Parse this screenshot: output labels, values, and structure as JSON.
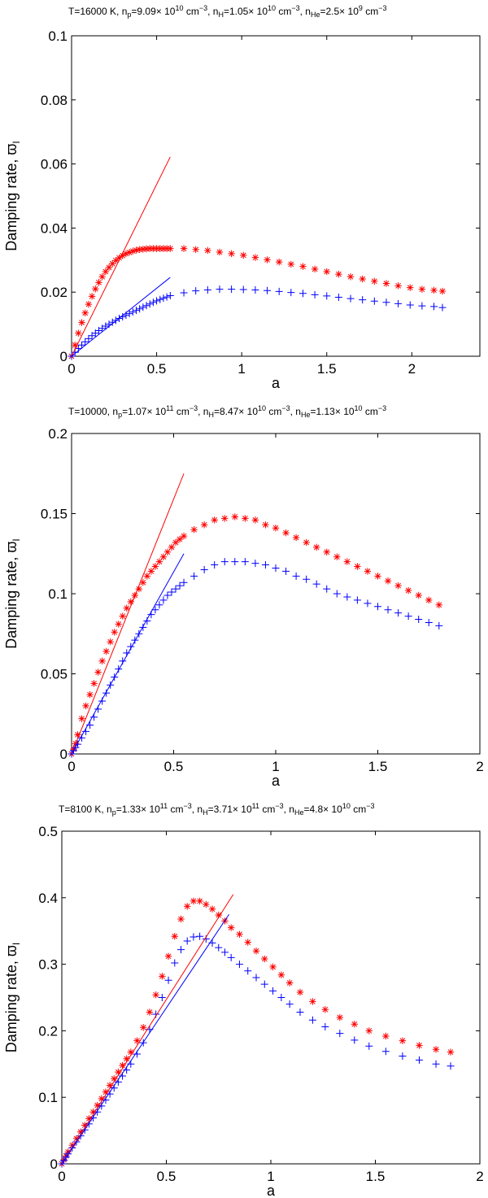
{
  "chart_data": [
    {
      "type": "scatter",
      "title_parts": [
        {
          "t": "T=16000 K, n"
        },
        {
          "t": "p",
          "sub": true
        },
        {
          "t": "=9.09× 10"
        },
        {
          "t": "10",
          "sup": true
        },
        {
          "t": " cm"
        },
        {
          "t": "−3",
          "sup": true
        },
        {
          "t": ", n"
        },
        {
          "t": "H",
          "sub": true
        },
        {
          "t": "=1.05× 10"
        },
        {
          "t": "10",
          "sup": true
        },
        {
          "t": " cm"
        },
        {
          "t": "−3",
          "sup": true
        },
        {
          "t": ", n"
        },
        {
          "t": "He",
          "sub": true
        },
        {
          "t": "=2.5× 10"
        },
        {
          "t": "9",
          "sup": true
        },
        {
          "t": " cm"
        },
        {
          "t": "−3",
          "sup": true
        }
      ],
      "xlabel": "a",
      "ylabel": "Damping rate, ϖ",
      "ylabel_sub": "I",
      "xlim": [
        0,
        2.4
      ],
      "ylim": [
        0,
        0.1
      ],
      "xticks": [
        0,
        0.5,
        1,
        1.5,
        2
      ],
      "xtick_labels": [
        "0",
        "0.5",
        "1",
        "1.5",
        "2"
      ],
      "yticks": [
        0,
        0.02,
        0.04,
        0.06,
        0.08,
        0.1
      ],
      "ytick_labels": [
        "0",
        "0.02",
        "0.04",
        "0.06",
        "0.08",
        "0.1"
      ],
      "series": [
        {
          "name": "red-star-series",
          "marker": "star",
          "color": "#ff0000",
          "x": [
            0.0,
            0.02,
            0.04,
            0.06,
            0.08,
            0.1,
            0.12,
            0.14,
            0.16,
            0.18,
            0.2,
            0.22,
            0.24,
            0.26,
            0.28,
            0.3,
            0.32,
            0.34,
            0.36,
            0.38,
            0.4,
            0.42,
            0.44,
            0.46,
            0.48,
            0.5,
            0.52,
            0.54,
            0.56,
            0.58,
            0.66,
            0.73,
            0.8,
            0.87,
            0.94,
            1.01,
            1.08,
            1.15,
            1.22,
            1.29,
            1.36,
            1.43,
            1.5,
            1.57,
            1.64,
            1.71,
            1.78,
            1.85,
            1.92,
            1.99,
            2.06,
            2.13,
            2.18
          ],
          "y": [
            0.0,
            0.0035,
            0.0072,
            0.0105,
            0.0135,
            0.0162,
            0.0187,
            0.021,
            0.023,
            0.0248,
            0.0264,
            0.0277,
            0.0289,
            0.0299,
            0.0307,
            0.0314,
            0.032,
            0.0324,
            0.0328,
            0.0331,
            0.0333,
            0.0334,
            0.0335,
            0.0336,
            0.0336,
            0.0336,
            0.0336,
            0.0336,
            0.0336,
            0.0336,
            0.0336,
            0.0333,
            0.033,
            0.0325,
            0.032,
            0.0315,
            0.0308,
            0.0301,
            0.0294,
            0.0287,
            0.028,
            0.0272,
            0.0264,
            0.0256,
            0.0248,
            0.0241,
            0.0234,
            0.0227,
            0.022,
            0.0214,
            0.0209,
            0.0206,
            0.0203
          ]
        },
        {
          "name": "blue-plus-series",
          "marker": "plus",
          "color": "#0000ff",
          "x": [
            0.0,
            0.02,
            0.04,
            0.06,
            0.08,
            0.1,
            0.12,
            0.14,
            0.16,
            0.18,
            0.2,
            0.22,
            0.24,
            0.26,
            0.28,
            0.3,
            0.32,
            0.34,
            0.36,
            0.38,
            0.4,
            0.42,
            0.44,
            0.46,
            0.48,
            0.5,
            0.52,
            0.54,
            0.56,
            0.58,
            0.66,
            0.73,
            0.8,
            0.87,
            0.94,
            1.01,
            1.08,
            1.15,
            1.22,
            1.29,
            1.36,
            1.43,
            1.5,
            1.57,
            1.64,
            1.71,
            1.78,
            1.85,
            1.92,
            1.99,
            2.06,
            2.13,
            2.18
          ],
          "y": [
            0.0,
            0.0012,
            0.0024,
            0.0035,
            0.0045,
            0.0055,
            0.0064,
            0.0072,
            0.008,
            0.0087,
            0.0094,
            0.01,
            0.0106,
            0.0112,
            0.0118,
            0.0123,
            0.0128,
            0.0133,
            0.0138,
            0.0143,
            0.0148,
            0.0153,
            0.0158,
            0.0163,
            0.0168,
            0.0173,
            0.0177,
            0.0181,
            0.0185,
            0.0189,
            0.0198,
            0.0204,
            0.0207,
            0.0209,
            0.0209,
            0.0208,
            0.0207,
            0.0205,
            0.0202,
            0.0199,
            0.0196,
            0.0192,
            0.0188,
            0.0184,
            0.018,
            0.0176,
            0.0172,
            0.0168,
            0.0164,
            0.016,
            0.0157,
            0.0155,
            0.0152
          ]
        },
        {
          "name": "red-line",
          "marker": "line",
          "color": "#ff0000",
          "x": [
            0,
            0.58
          ],
          "y": [
            0,
            0.0622
          ]
        },
        {
          "name": "blue-line",
          "marker": "line",
          "color": "#0000ff",
          "x": [
            0,
            0.58
          ],
          "y": [
            0,
            0.0246
          ]
        }
      ]
    },
    {
      "type": "scatter",
      "title_parts": [
        {
          "t": "T=10000, n"
        },
        {
          "t": "p",
          "sub": true
        },
        {
          "t": "=1.07× 10"
        },
        {
          "t": "11",
          "sup": true
        },
        {
          "t": " cm"
        },
        {
          "t": "−3",
          "sup": true
        },
        {
          "t": ", n"
        },
        {
          "t": "H",
          "sub": true
        },
        {
          "t": "=8.47× 10"
        },
        {
          "t": "10",
          "sup": true
        },
        {
          "t": " cm"
        },
        {
          "t": "−3",
          "sup": true
        },
        {
          "t": ", n"
        },
        {
          "t": "He",
          "sub": true
        },
        {
          "t": "=1.13× 10"
        },
        {
          "t": "10",
          "sup": true
        },
        {
          "t": " cm"
        },
        {
          "t": "−3",
          "sup": true
        }
      ],
      "xlabel": "a",
      "ylabel": "Damping rate, ϖ",
      "ylabel_sub": "I",
      "xlim": [
        0,
        2
      ],
      "ylim": [
        0,
        0.2
      ],
      "xticks": [
        0,
        0.5,
        1,
        1.5,
        2
      ],
      "xtick_labels": [
        "0",
        "0.5",
        "1",
        "1.5",
        "2"
      ],
      "yticks": [
        0,
        0.05,
        0.1,
        0.15,
        0.2
      ],
      "ytick_labels": [
        "0",
        "0.05",
        "0.1",
        "0.15",
        "0.2"
      ],
      "series": [
        {
          "name": "red-star-series",
          "marker": "star",
          "color": "#ff0000",
          "x": [
            0.0,
            0.01,
            0.02,
            0.03,
            0.05,
            0.07,
            0.09,
            0.11,
            0.13,
            0.15,
            0.17,
            0.19,
            0.21,
            0.23,
            0.25,
            0.27,
            0.29,
            0.31,
            0.33,
            0.35,
            0.37,
            0.39,
            0.41,
            0.43,
            0.45,
            0.47,
            0.49,
            0.51,
            0.53,
            0.55,
            0.6,
            0.65,
            0.7,
            0.75,
            0.8,
            0.85,
            0.9,
            0.95,
            1.0,
            1.05,
            1.1,
            1.15,
            1.2,
            1.25,
            1.3,
            1.35,
            1.4,
            1.45,
            1.5,
            1.55,
            1.6,
            1.65,
            1.7,
            1.75,
            1.8
          ],
          "y": [
            0.0,
            0.003,
            0.0065,
            0.012,
            0.022,
            0.03,
            0.037,
            0.044,
            0.051,
            0.058,
            0.064,
            0.07,
            0.076,
            0.081,
            0.086,
            0.091,
            0.095,
            0.099,
            0.103,
            0.107,
            0.111,
            0.114,
            0.117,
            0.12,
            0.123,
            0.126,
            0.129,
            0.132,
            0.134,
            0.136,
            0.14,
            0.143,
            0.146,
            0.147,
            0.148,
            0.147,
            0.146,
            0.143,
            0.141,
            0.138,
            0.135,
            0.132,
            0.129,
            0.126,
            0.123,
            0.12,
            0.117,
            0.114,
            0.111,
            0.108,
            0.105,
            0.102,
            0.099,
            0.096,
            0.093
          ]
        },
        {
          "name": "blue-plus-series",
          "marker": "plus",
          "color": "#0000ff",
          "x": [
            0.0,
            0.01,
            0.02,
            0.03,
            0.05,
            0.07,
            0.09,
            0.11,
            0.13,
            0.15,
            0.17,
            0.19,
            0.21,
            0.23,
            0.25,
            0.27,
            0.29,
            0.31,
            0.33,
            0.35,
            0.37,
            0.39,
            0.41,
            0.43,
            0.45,
            0.47,
            0.49,
            0.51,
            0.53,
            0.55,
            0.6,
            0.65,
            0.7,
            0.75,
            0.8,
            0.85,
            0.9,
            0.95,
            1.0,
            1.05,
            1.1,
            1.15,
            1.2,
            1.25,
            1.3,
            1.35,
            1.4,
            1.45,
            1.5,
            1.55,
            1.6,
            1.65,
            1.7,
            1.75,
            1.8
          ],
          "y": [
            0.0,
            0.002,
            0.004,
            0.006,
            0.01,
            0.014,
            0.018,
            0.023,
            0.028,
            0.033,
            0.038,
            0.043,
            0.048,
            0.053,
            0.058,
            0.063,
            0.067,
            0.071,
            0.075,
            0.079,
            0.083,
            0.087,
            0.09,
            0.093,
            0.096,
            0.099,
            0.101,
            0.103,
            0.105,
            0.107,
            0.111,
            0.115,
            0.118,
            0.12,
            0.12,
            0.12,
            0.119,
            0.118,
            0.116,
            0.114,
            0.111,
            0.109,
            0.106,
            0.103,
            0.1,
            0.098,
            0.096,
            0.094,
            0.092,
            0.09,
            0.088,
            0.086,
            0.084,
            0.082,
            0.08
          ]
        },
        {
          "name": "red-line",
          "marker": "line",
          "color": "#ff0000",
          "x": [
            0,
            0.55
          ],
          "y": [
            0,
            0.175
          ]
        },
        {
          "name": "blue-line",
          "marker": "line",
          "color": "#0000ff",
          "x": [
            0,
            0.55
          ],
          "y": [
            0,
            0.125
          ]
        }
      ]
    },
    {
      "type": "scatter",
      "title_parts": [
        {
          "t": "T=8100 K, n"
        },
        {
          "t": "p",
          "sub": true
        },
        {
          "t": "=1.33× 10"
        },
        {
          "t": "11",
          "sup": true
        },
        {
          "t": " cm"
        },
        {
          "t": "−3",
          "sup": true
        },
        {
          "t": ", n"
        },
        {
          "t": "H",
          "sub": true
        },
        {
          "t": "=3.71× 10"
        },
        {
          "t": "11",
          "sup": true
        },
        {
          "t": " cm"
        },
        {
          "t": "−3",
          "sup": true
        },
        {
          "t": ", n"
        },
        {
          "t": "He",
          "sub": true
        },
        {
          "t": "=4.8× 10"
        },
        {
          "t": "10",
          "sup": true
        },
        {
          "t": " cm"
        },
        {
          "t": "−3",
          "sup": true
        }
      ],
      "xlabel": "a",
      "ylabel": "Damping rate, ϖ",
      "ylabel_sub": "I",
      "xlim": [
        0,
        2
      ],
      "ylim": [
        0,
        0.5
      ],
      "xticks": [
        0,
        0.5,
        1,
        1.5,
        2
      ],
      "xtick_labels": [
        "0",
        "0.5",
        "1",
        "1.5",
        "2"
      ],
      "yticks": [
        0,
        0.1,
        0.2,
        0.3,
        0.4,
        0.5
      ],
      "ytick_labels": [
        "0",
        "0.1",
        "0.2",
        "0.3",
        "0.4",
        "0.5"
      ],
      "series": [
        {
          "name": "red-star-series",
          "marker": "star",
          "color": "#ff0000",
          "x": [
            0.0,
            0.01,
            0.02,
            0.03,
            0.05,
            0.07,
            0.09,
            0.11,
            0.13,
            0.15,
            0.17,
            0.19,
            0.21,
            0.23,
            0.25,
            0.27,
            0.29,
            0.31,
            0.33,
            0.36,
            0.39,
            0.42,
            0.45,
            0.48,
            0.51,
            0.54,
            0.57,
            0.6,
            0.63,
            0.66,
            0.69,
            0.72,
            0.75,
            0.78,
            0.81,
            0.85,
            0.89,
            0.93,
            0.97,
            1.01,
            1.05,
            1.09,
            1.14,
            1.2,
            1.26,
            1.33,
            1.4,
            1.47,
            1.55,
            1.63,
            1.71,
            1.79,
            1.86
          ],
          "y": [
            0.0,
            0.006,
            0.012,
            0.018,
            0.028,
            0.038,
            0.048,
            0.058,
            0.068,
            0.078,
            0.088,
            0.098,
            0.108,
            0.118,
            0.128,
            0.138,
            0.148,
            0.158,
            0.168,
            0.185,
            0.205,
            0.228,
            0.254,
            0.282,
            0.312,
            0.342,
            0.368,
            0.387,
            0.395,
            0.395,
            0.39,
            0.383,
            0.374,
            0.365,
            0.355,
            0.345,
            0.333,
            0.32,
            0.308,
            0.296,
            0.284,
            0.272,
            0.258,
            0.244,
            0.232,
            0.22,
            0.21,
            0.2,
            0.192,
            0.185,
            0.178,
            0.172,
            0.168
          ]
        },
        {
          "name": "blue-plus-series",
          "marker": "plus",
          "color": "#0000ff",
          "x": [
            0.0,
            0.01,
            0.02,
            0.03,
            0.05,
            0.07,
            0.09,
            0.11,
            0.13,
            0.15,
            0.17,
            0.19,
            0.21,
            0.23,
            0.25,
            0.27,
            0.29,
            0.31,
            0.33,
            0.36,
            0.39,
            0.42,
            0.45,
            0.48,
            0.51,
            0.54,
            0.57,
            0.6,
            0.63,
            0.66,
            0.69,
            0.72,
            0.75,
            0.78,
            0.81,
            0.85,
            0.89,
            0.93,
            0.97,
            1.01,
            1.05,
            1.09,
            1.14,
            1.2,
            1.26,
            1.33,
            1.4,
            1.47,
            1.55,
            1.63,
            1.71,
            1.79,
            1.86
          ],
          "y": [
            0.0,
            0.005,
            0.01,
            0.015,
            0.024,
            0.033,
            0.042,
            0.051,
            0.06,
            0.069,
            0.078,
            0.087,
            0.096,
            0.105,
            0.114,
            0.123,
            0.132,
            0.141,
            0.15,
            0.165,
            0.182,
            0.202,
            0.225,
            0.25,
            0.276,
            0.302,
            0.322,
            0.335,
            0.341,
            0.342,
            0.338,
            0.332,
            0.325,
            0.318,
            0.31,
            0.3,
            0.29,
            0.28,
            0.27,
            0.26,
            0.25,
            0.24,
            0.228,
            0.216,
            0.206,
            0.196,
            0.186,
            0.177,
            0.169,
            0.162,
            0.156,
            0.15,
            0.147
          ]
        },
        {
          "name": "red-line",
          "marker": "line",
          "color": "#ff0000",
          "x": [
            0,
            0.82
          ],
          "y": [
            0,
            0.405
          ]
        },
        {
          "name": "blue-line",
          "marker": "line",
          "color": "#0000ff",
          "x": [
            0,
            0.8
          ],
          "y": [
            0,
            0.375
          ]
        }
      ]
    }
  ]
}
